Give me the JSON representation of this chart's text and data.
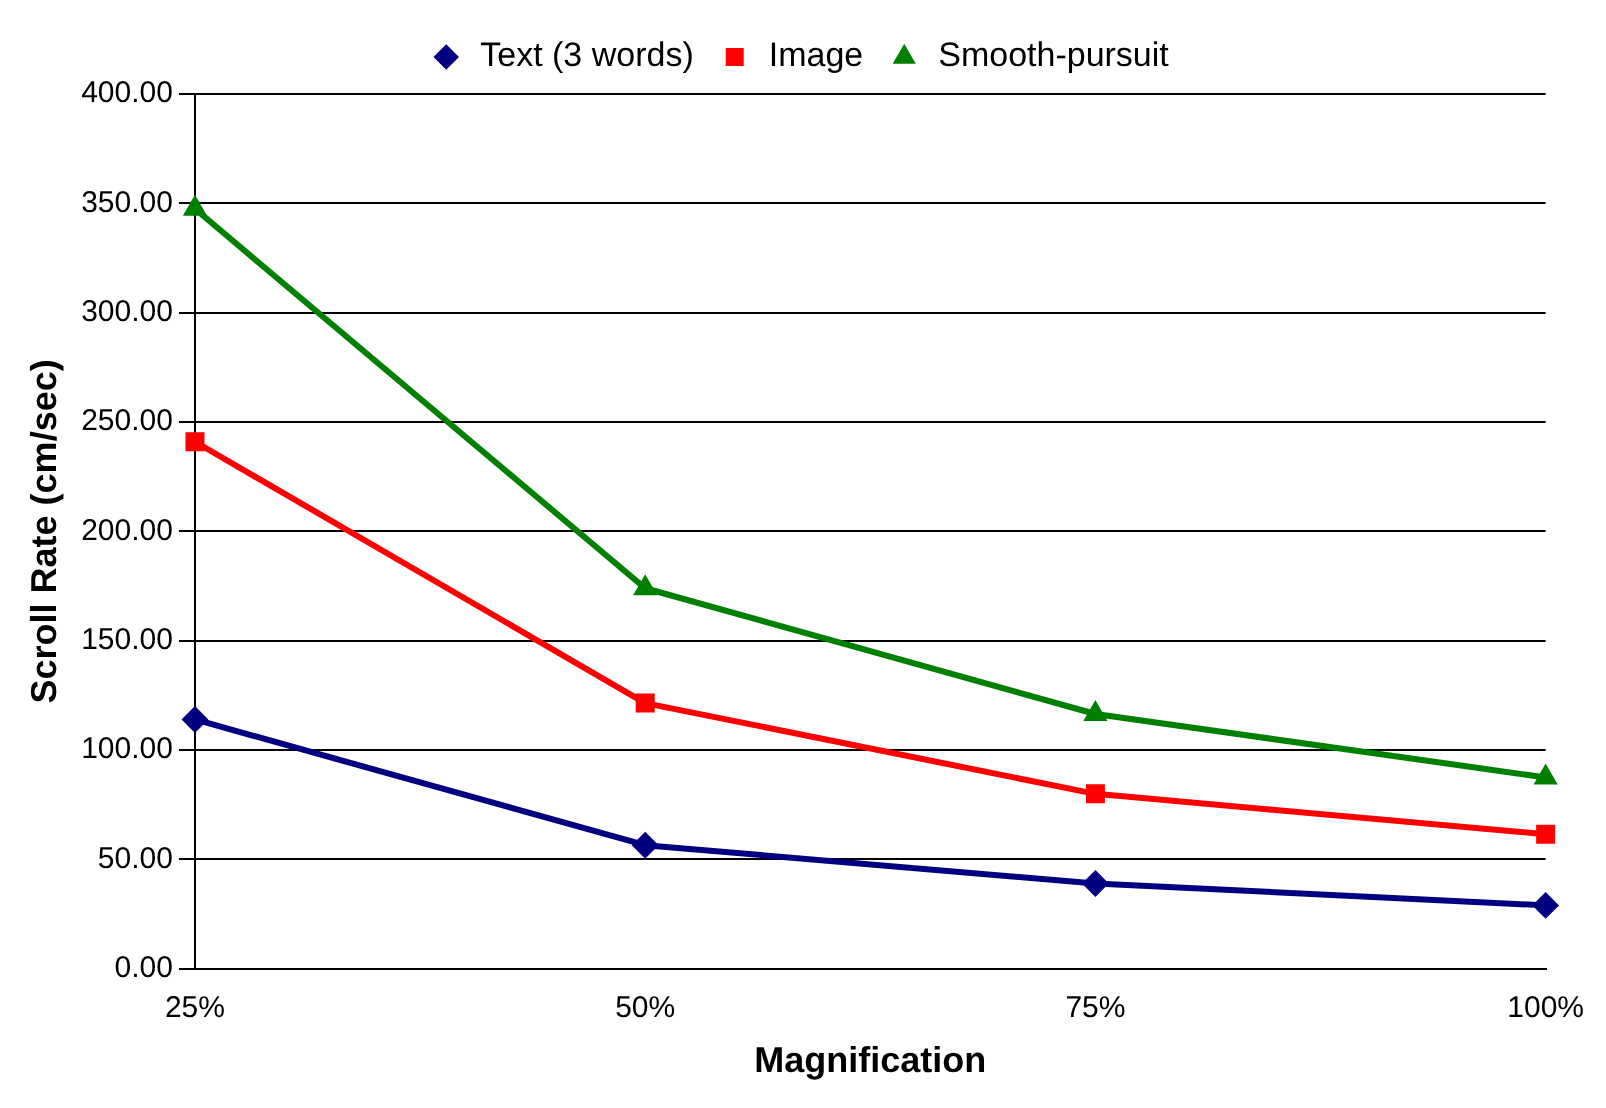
{
  "chart_data": {
    "type": "line",
    "xlabel": "Magnification",
    "ylabel": "Scroll Rate (cm/sec)",
    "categories": [
      "25%",
      "50%",
      "75%",
      "100%"
    ],
    "series": [
      {
        "name": "Text (3 words)",
        "color": "#000080",
        "marker": "diamond",
        "values": [
          114,
          56.5,
          39,
          29
        ]
      },
      {
        "name": "Image",
        "color": "#ff0000",
        "marker": "square",
        "values": [
          241,
          121.5,
          80,
          61.5
        ]
      },
      {
        "name": "Smooth-pursuit",
        "color": "#008000",
        "marker": "triangle",
        "values": [
          347.5,
          174,
          116.5,
          87.5
        ]
      }
    ],
    "ylim": [
      0,
      400
    ],
    "yticks": [
      {
        "value": 0,
        "label": "0.00"
      },
      {
        "value": 50,
        "label": "50.00"
      },
      {
        "value": 100,
        "label": "100.00"
      },
      {
        "value": 150,
        "label": "150.00"
      },
      {
        "value": 200,
        "label": "200.00"
      },
      {
        "value": 250,
        "label": "250.00"
      },
      {
        "value": 300,
        "label": "300.00"
      },
      {
        "value": 350,
        "label": "350.00"
      },
      {
        "value": 400,
        "label": "400.00"
      }
    ],
    "grid": "y",
    "legend": "top"
  }
}
